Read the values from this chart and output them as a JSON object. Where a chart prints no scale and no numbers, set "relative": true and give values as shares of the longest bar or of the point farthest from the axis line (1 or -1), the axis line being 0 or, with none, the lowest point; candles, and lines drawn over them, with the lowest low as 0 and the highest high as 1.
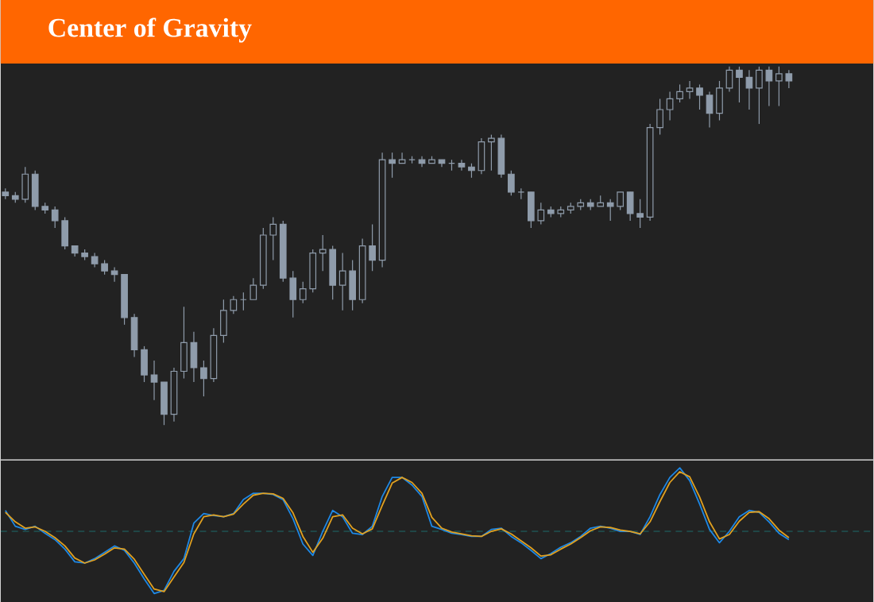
{
  "chart_data": [
    {
      "type": "candlestick",
      "title": "Center of Gravity",
      "relative": true,
      "color": "#8f9cab",
      "categories": [
        null,
        null,
        null,
        null,
        null,
        null,
        null,
        null,
        null,
        null,
        null,
        null,
        null,
        null,
        null,
        null,
        null,
        null,
        null,
        null,
        null,
        null,
        null,
        null,
        null,
        null,
        null,
        null,
        null,
        null,
        null,
        null,
        null,
        null,
        null,
        null,
        null,
        null,
        null,
        null,
        null,
        null,
        null,
        null,
        null,
        null,
        null,
        null,
        null,
        null,
        null,
        null,
        null,
        null,
        null,
        null,
        null,
        null,
        null,
        null,
        null,
        null,
        null,
        null,
        null,
        null,
        null,
        null,
        null,
        null,
        null,
        null,
        null,
        null,
        null,
        null,
        null,
        null,
        null,
        null
      ],
      "ohlc": [
        [
          0.65,
          0.66,
          0.63,
          0.64
        ],
        [
          0.64,
          0.65,
          0.62,
          0.63
        ],
        [
          0.63,
          0.72,
          0.62,
          0.7
        ],
        [
          0.7,
          0.71,
          0.6,
          0.61
        ],
        [
          0.61,
          0.62,
          0.59,
          0.6
        ],
        [
          0.6,
          0.61,
          0.55,
          0.57
        ],
        [
          0.57,
          0.58,
          0.49,
          0.5
        ],
        [
          0.5,
          0.5,
          0.47,
          0.48
        ],
        [
          0.48,
          0.49,
          0.46,
          0.47
        ],
        [
          0.47,
          0.48,
          0.44,
          0.45
        ],
        [
          0.45,
          0.46,
          0.42,
          0.43
        ],
        [
          0.43,
          0.44,
          0.4,
          0.42
        ],
        [
          0.42,
          0.42,
          0.28,
          0.3
        ],
        [
          0.3,
          0.31,
          0.19,
          0.21
        ],
        [
          0.21,
          0.22,
          0.12,
          0.14
        ],
        [
          0.14,
          0.18,
          0.07,
          0.12
        ],
        [
          0.12,
          0.12,
          0.0,
          0.03
        ],
        [
          0.03,
          0.16,
          0.01,
          0.15
        ],
        [
          0.15,
          0.33,
          0.13,
          0.23
        ],
        [
          0.23,
          0.26,
          0.12,
          0.16
        ],
        [
          0.16,
          0.18,
          0.08,
          0.13
        ],
        [
          0.13,
          0.27,
          0.12,
          0.25
        ],
        [
          0.25,
          0.35,
          0.23,
          0.32
        ],
        [
          0.32,
          0.36,
          0.31,
          0.35
        ],
        [
          0.35,
          0.37,
          0.32,
          0.35
        ],
        [
          0.35,
          0.41,
          0.35,
          0.39
        ],
        [
          0.39,
          0.55,
          0.38,
          0.53
        ],
        [
          0.53,
          0.58,
          0.46,
          0.56
        ],
        [
          0.56,
          0.57,
          0.4,
          0.41
        ],
        [
          0.41,
          0.43,
          0.3,
          0.35
        ],
        [
          0.35,
          0.4,
          0.34,
          0.38
        ],
        [
          0.38,
          0.49,
          0.37,
          0.48
        ],
        [
          0.48,
          0.53,
          0.43,
          0.49
        ],
        [
          0.49,
          0.5,
          0.35,
          0.39
        ],
        [
          0.39,
          0.48,
          0.32,
          0.43
        ],
        [
          0.43,
          0.46,
          0.32,
          0.35
        ],
        [
          0.35,
          0.52,
          0.34,
          0.5
        ],
        [
          0.5,
          0.56,
          0.43,
          0.46
        ],
        [
          0.46,
          0.76,
          0.44,
          0.74
        ],
        [
          0.74,
          0.76,
          0.69,
          0.73
        ],
        [
          0.73,
          0.76,
          0.73,
          0.74
        ],
        [
          0.74,
          0.75,
          0.73,
          0.74
        ],
        [
          0.74,
          0.75,
          0.72,
          0.73
        ],
        [
          0.73,
          0.75,
          0.73,
          0.74
        ],
        [
          0.74,
          0.74,
          0.72,
          0.73
        ],
        [
          0.73,
          0.74,
          0.71,
          0.73
        ],
        [
          0.73,
          0.74,
          0.71,
          0.72
        ],
        [
          0.72,
          0.73,
          0.69,
          0.71
        ],
        [
          0.71,
          0.8,
          0.7,
          0.79
        ],
        [
          0.79,
          0.81,
          0.71,
          0.8
        ],
        [
          0.8,
          0.81,
          0.69,
          0.7
        ],
        [
          0.7,
          0.71,
          0.64,
          0.65
        ],
        [
          0.65,
          0.66,
          0.63,
          0.65
        ],
        [
          0.65,
          0.65,
          0.55,
          0.57
        ],
        [
          0.57,
          0.62,
          0.56,
          0.6
        ],
        [
          0.6,
          0.61,
          0.58,
          0.59
        ],
        [
          0.59,
          0.61,
          0.58,
          0.6
        ],
        [
          0.6,
          0.62,
          0.59,
          0.61
        ],
        [
          0.61,
          0.63,
          0.6,
          0.62
        ],
        [
          0.62,
          0.63,
          0.6,
          0.61
        ],
        [
          0.61,
          0.64,
          0.61,
          0.62
        ],
        [
          0.62,
          0.63,
          0.57,
          0.61
        ],
        [
          0.61,
          0.65,
          0.6,
          0.65
        ],
        [
          0.65,
          0.65,
          0.57,
          0.59
        ],
        [
          0.59,
          0.63,
          0.55,
          0.58
        ],
        [
          0.58,
          0.84,
          0.57,
          0.83
        ],
        [
          0.83,
          0.91,
          0.81,
          0.88
        ],
        [
          0.88,
          0.93,
          0.85,
          0.91
        ],
        [
          0.91,
          0.95,
          0.9,
          0.93
        ],
        [
          0.93,
          0.96,
          0.91,
          0.94
        ],
        [
          0.94,
          0.95,
          0.88,
          0.92
        ],
        [
          0.92,
          0.93,
          0.83,
          0.87
        ],
        [
          0.87,
          0.96,
          0.85,
          0.94
        ],
        [
          0.94,
          1.0,
          0.93,
          0.99
        ],
        [
          0.99,
          1.0,
          0.9,
          0.97
        ],
        [
          0.97,
          0.99,
          0.88,
          0.94
        ],
        [
          0.94,
          1.0,
          0.84,
          0.99
        ],
        [
          0.99,
          1.0,
          0.89,
          0.96
        ],
        [
          0.96,
          1.0,
          0.89,
          0.98
        ],
        [
          0.98,
          0.99,
          0.94,
          0.96
        ]
      ]
    },
    {
      "type": "line",
      "relative": true,
      "categories": [
        null,
        null,
        null,
        null,
        null,
        null,
        null,
        null,
        null,
        null,
        null,
        null,
        null,
        null,
        null,
        null,
        null,
        null,
        null,
        null,
        null,
        null,
        null,
        null,
        null,
        null,
        null,
        null,
        null,
        null,
        null,
        null,
        null,
        null,
        null,
        null,
        null,
        null,
        null,
        null,
        null,
        null,
        null,
        null,
        null,
        null,
        null,
        null,
        null,
        null,
        null,
        null,
        null,
        null,
        null,
        null,
        null,
        null,
        null,
        null,
        null,
        null,
        null,
        null,
        null,
        null,
        null,
        null,
        null,
        null,
        null,
        null,
        null,
        null,
        null,
        null,
        null,
        null,
        null,
        null
      ],
      "series": [
        {
          "color": "#1e88e5",
          "values": [
            0.33,
            0.08,
            0.03,
            0.08,
            -0.03,
            -0.13,
            -0.28,
            -0.48,
            -0.5,
            -0.43,
            -0.33,
            -0.23,
            -0.3,
            -0.5,
            -0.75,
            -0.98,
            -0.93,
            -0.63,
            -0.43,
            0.13,
            0.28,
            0.25,
            0.23,
            0.28,
            0.5,
            0.6,
            0.6,
            0.58,
            0.5,
            0.2,
            -0.2,
            -0.38,
            0,
            0.33,
            0.23,
            -0.03,
            -0.05,
            0.08,
            0.55,
            0.85,
            0.85,
            0.73,
            0.55,
            0.08,
            0.03,
            -0.03,
            -0.05,
            -0.08,
            -0.08,
            0.03,
            0.05,
            -0.08,
            -0.18,
            -0.3,
            -0.43,
            -0.35,
            -0.25,
            -0.18,
            -0.08,
            0.05,
            0.08,
            0.05,
            0,
            0,
            -0.05,
            0.23,
            0.58,
            0.85,
            1.0,
            0.8,
            0.43,
            0.03,
            -0.18,
            0,
            0.23,
            0.33,
            0.3,
            0.15,
            -0.03,
            -0.13
          ]
        },
        {
          "color": "#e0a020",
          "values": [
            0.3,
            0.15,
            0.05,
            0.07,
            0,
            -0.1,
            -0.23,
            -0.42,
            -0.5,
            -0.45,
            -0.36,
            -0.26,
            -0.28,
            -0.44,
            -0.68,
            -0.91,
            -0.95,
            -0.72,
            -0.49,
            -0.04,
            0.23,
            0.26,
            0.23,
            0.27,
            0.43,
            0.57,
            0.6,
            0.59,
            0.52,
            0.29,
            -0.08,
            -0.33,
            -0.11,
            0.23,
            0.26,
            0.05,
            -0.04,
            0.04,
            0.41,
            0.76,
            0.85,
            0.77,
            0.6,
            0.22,
            0.05,
            -0.01,
            -0.04,
            -0.07,
            -0.08,
            0,
            0.04,
            -0.04,
            -0.15,
            -0.26,
            -0.39,
            -0.37,
            -0.28,
            -0.2,
            -0.1,
            0.01,
            0.07,
            0.06,
            0.02,
            0,
            -0.04,
            0.15,
            0.47,
            0.77,
            0.94,
            0.86,
            0.54,
            0.15,
            -0.12,
            -0.05,
            0.16,
            0.3,
            0.31,
            0.2,
            0.02,
            -0.1
          ]
        }
      ],
      "ref_lines": [
        {
          "axis": "y",
          "value": 0,
          "color": "#1d6b6b",
          "line_style": "dashed"
        }
      ]
    }
  ]
}
